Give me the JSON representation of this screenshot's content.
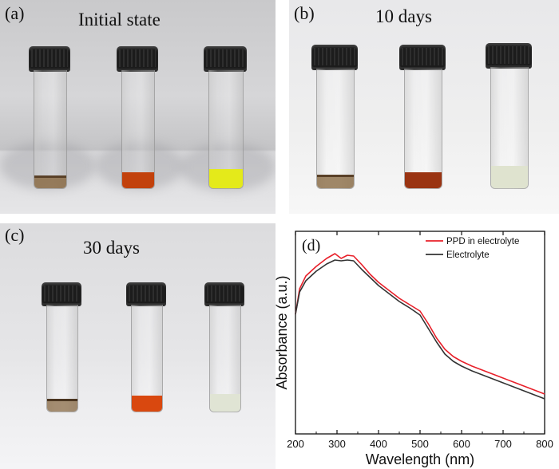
{
  "panels": {
    "a": {
      "label": "(a)",
      "title": "Initial state"
    },
    "b": {
      "label": "(b)",
      "title": "10 days"
    },
    "c": {
      "label": "(c)",
      "title": "30 days"
    },
    "d": {
      "label": "(d)"
    }
  },
  "colors": {
    "vial_a1": "#8a6b45",
    "vial_a2": "#c2410c",
    "vial_a3": "#e4ea1a",
    "vial_b1": "#8a6b45",
    "vial_b2": "#9a3412",
    "vial_b3": "#dfe3cf",
    "vial_c1": "#8a6b45",
    "vial_c2": "#d9480f",
    "vial_c3": "#e0e4d4"
  },
  "chart_data": {
    "type": "line",
    "title": "",
    "xlabel": "Wavelength (nm)",
    "ylabel": "Absorbance (a.u.)",
    "xlim": [
      200,
      800
    ],
    "ylim": [
      0,
      1
    ],
    "xticks": [
      200,
      300,
      400,
      500,
      600,
      700,
      800
    ],
    "legend_position": "top-right",
    "series": [
      {
        "name": "PPD in electrolyte",
        "color": "#e8202a",
        "x": [
          200,
          210,
          225,
          250,
          275,
          295,
          310,
          325,
          340,
          360,
          380,
          400,
          425,
          450,
          475,
          500,
          520,
          540,
          560,
          580,
          600,
          625,
          650,
          675,
          700,
          725,
          750,
          775,
          800
        ],
        "y": [
          0.62,
          0.78,
          0.86,
          0.92,
          0.97,
          1.0,
          0.97,
          0.99,
          0.985,
          0.93,
          0.87,
          0.82,
          0.77,
          0.72,
          0.68,
          0.64,
          0.56,
          0.47,
          0.4,
          0.355,
          0.325,
          0.295,
          0.27,
          0.245,
          0.22,
          0.195,
          0.17,
          0.145,
          0.12
        ]
      },
      {
        "name": "Electrolyte",
        "color": "#333333",
        "x": [
          200,
          210,
          225,
          250,
          275,
          295,
          310,
          325,
          340,
          360,
          380,
          400,
          425,
          450,
          475,
          500,
          520,
          540,
          560,
          580,
          600,
          625,
          650,
          675,
          700,
          725,
          750,
          775,
          800
        ],
        "y": [
          0.62,
          0.76,
          0.83,
          0.89,
          0.935,
          0.96,
          0.955,
          0.96,
          0.955,
          0.9,
          0.85,
          0.8,
          0.75,
          0.7,
          0.66,
          0.615,
          0.53,
          0.445,
          0.37,
          0.325,
          0.295,
          0.265,
          0.24,
          0.215,
          0.19,
          0.165,
          0.14,
          0.115,
          0.09
        ]
      }
    ]
  }
}
